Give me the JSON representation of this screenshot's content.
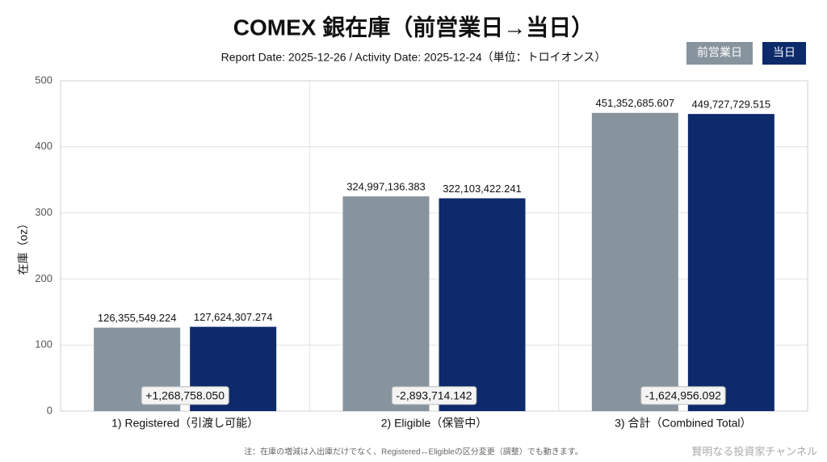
{
  "chart_data": {
    "type": "bar",
    "title": "COMEX 銀在庫（前営業日→当日）",
    "subtitle": "Report Date: 2025-12-26 / Activity Date: 2025-12-24（単位：トロイオンス）",
    "y_label": "在庫（oz）",
    "categories": [
      "1) Registered（引渡し可能）",
      "2) Eligible（保管中）",
      "3) 合計（Combined Total）"
    ],
    "series": [
      {
        "name": "前営業日",
        "color": "#87949e",
        "values": [
          126.355549224,
          324.997136383,
          451.352685607
        ],
        "value_labels": [
          "126,355,549.224",
          "324,997,136.383",
          "451,352,685.607"
        ]
      },
      {
        "name": "当日",
        "color": "#0d2a6b",
        "values": [
          127.624307274,
          322.103422241,
          449.727729515
        ],
        "value_labels": [
          "127,624,307.274",
          "322,103,422.241",
          "449,727,729.515"
        ]
      }
    ],
    "annotations": [
      "+1,268,758.050",
      "-2,893,714.142",
      "-1,624,956.092"
    ],
    "ylim": [
      0,
      500
    ],
    "yticks": [
      0,
      100,
      200,
      300,
      400,
      500
    ],
    "grid": true,
    "legend": "upper right",
    "footnote": "注：在庫の増減は入出庫だけでなく、Registered↔Eligibleの区分変更（調整）でも動きます。",
    "watermark": "賢明なる投資家チャンネル"
  }
}
